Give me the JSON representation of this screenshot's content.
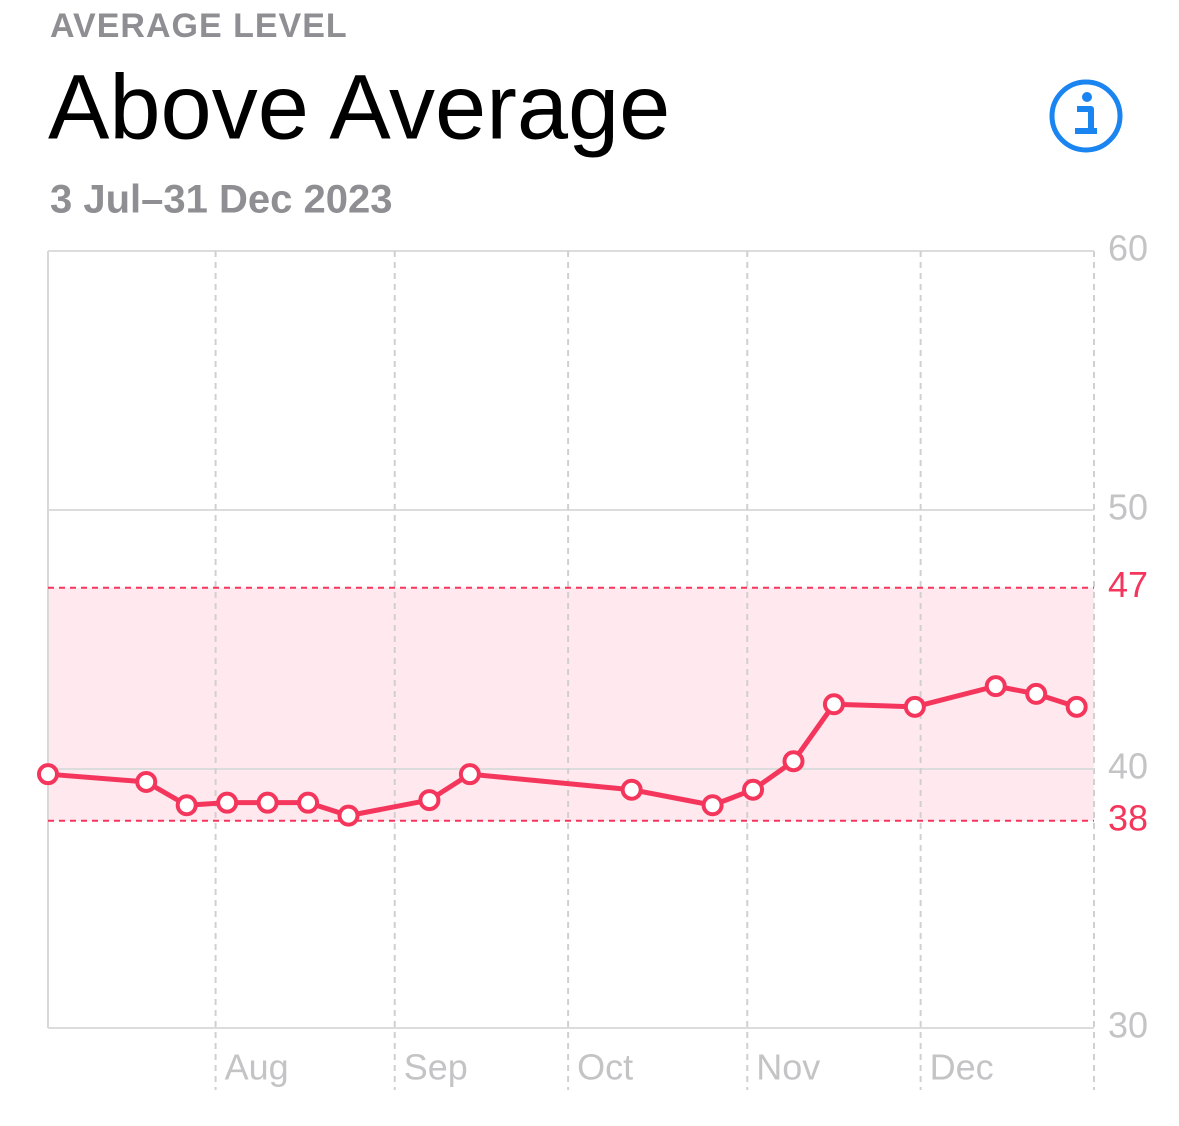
{
  "chart_data": {
    "type": "line",
    "header": "AVERAGE LEVEL",
    "title": "Above Average",
    "subtitle": "3 Jul–31 Dec 2023",
    "x": [
      "2023-07-03",
      "2023-07-20",
      "2023-07-27",
      "2023-08-03",
      "2023-08-10",
      "2023-08-17",
      "2023-08-24",
      "2023-09-07",
      "2023-09-14",
      "2023-10-12",
      "2023-10-26",
      "2023-11-02",
      "2023-11-09",
      "2023-11-16",
      "2023-11-30",
      "2023-12-14",
      "2023-12-21",
      "2023-12-28"
    ],
    "values": [
      39.8,
      39.5,
      38.6,
      38.7,
      38.7,
      38.7,
      38.2,
      38.8,
      39.8,
      39.2,
      38.6,
      39.2,
      40.3,
      42.5,
      42.4,
      43.2,
      42.9,
      42.4
    ],
    "color": "#f5365c",
    "xlim": [
      "2023-07-03",
      "2023-12-31"
    ],
    "xticks": [
      {
        "value": "2023-08-01",
        "label": "Aug"
      },
      {
        "value": "2023-09-01",
        "label": "Sep"
      },
      {
        "value": "2023-10-01",
        "label": "Oct"
      },
      {
        "value": "2023-11-01",
        "label": "Nov"
      },
      {
        "value": "2023-12-01",
        "label": "Dec"
      }
    ],
    "ylim": [
      30,
      60
    ],
    "yticks": [
      30,
      40,
      50,
      60
    ],
    "range": {
      "low": 38,
      "high": 47,
      "color": "#f5365c",
      "fill": "#ffe8ee"
    },
    "grid": true
  }
}
